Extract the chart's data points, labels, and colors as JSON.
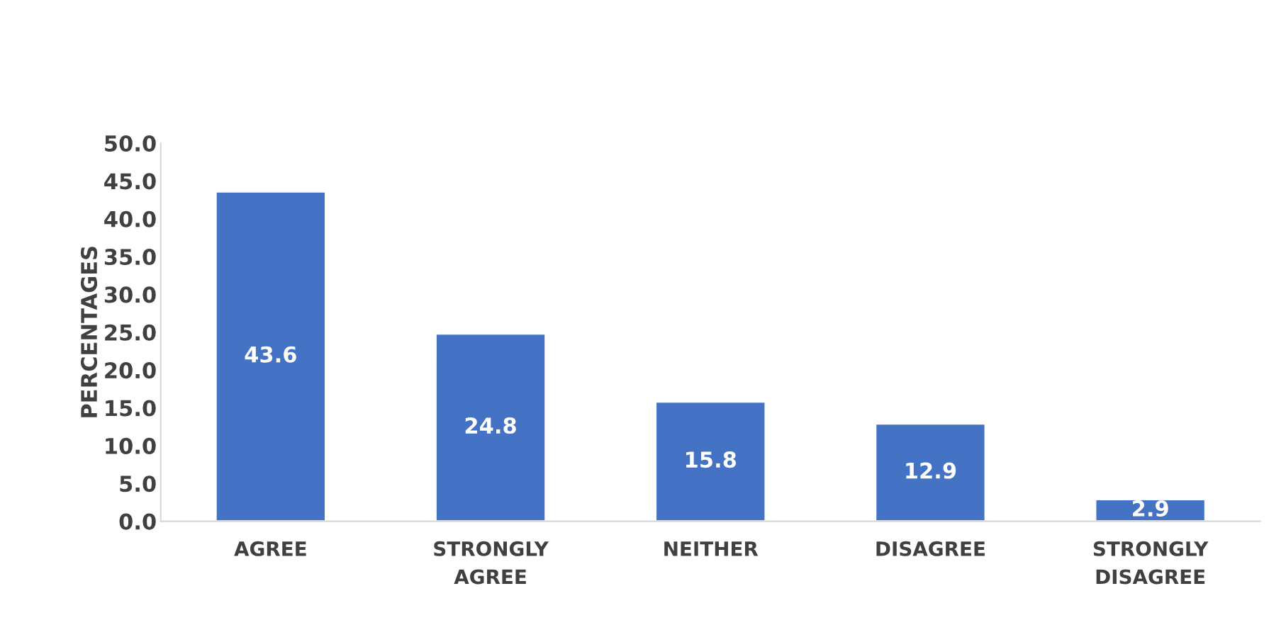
{
  "chart_data": {
    "type": "bar",
    "ylabel": "PERCENTAGES",
    "categories": [
      "AGREE",
      "STRONGLY\nAGREE",
      "NEITHER",
      "DISAGREE",
      "STRONGLY\nDISAGREE"
    ],
    "values": [
      43.6,
      24.8,
      15.8,
      12.9,
      2.9
    ],
    "color": "#4472c4",
    "ylim": [
      0,
      50
    ],
    "yticks": [
      {
        "value": 0,
        "label": "0.0"
      },
      {
        "value": 5,
        "label": "5.0"
      },
      {
        "value": 10,
        "label": "10.0"
      },
      {
        "value": 15,
        "label": "15.0"
      },
      {
        "value": 20,
        "label": "20.0"
      },
      {
        "value": 25,
        "label": "25.0"
      },
      {
        "value": 30,
        "label": "30.0"
      },
      {
        "value": 35,
        "label": "35.0"
      },
      {
        "value": 40,
        "label": "40.0"
      },
      {
        "value": 45,
        "label": "45.0"
      },
      {
        "value": 50,
        "label": "50.0"
      }
    ],
    "data_labels": true,
    "grid": false
  }
}
